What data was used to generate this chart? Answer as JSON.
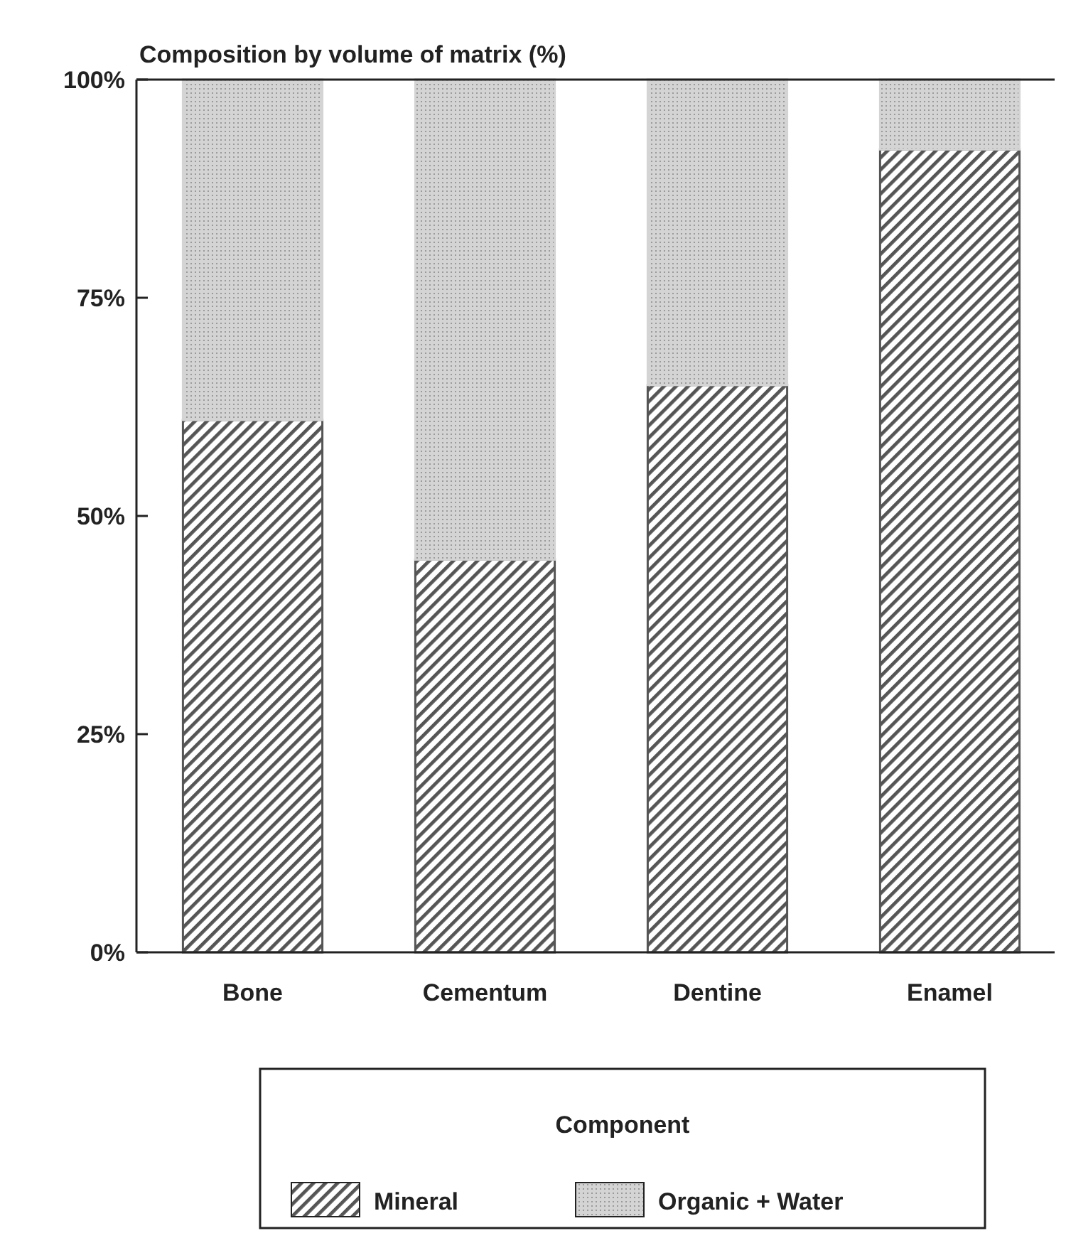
{
  "chart_data": {
    "type": "bar",
    "stacked": true,
    "title": "Composition by volume of matrix (%)",
    "categories": [
      "Bone",
      "Cementum",
      "Dentine",
      "Enamel"
    ],
    "series": [
      {
        "name": "Mineral",
        "color": "#555555",
        "values": [
          61,
          45,
          65,
          92
        ]
      },
      {
        "name": "Organic + Water",
        "color": "#d4d4d4",
        "values": [
          39,
          55,
          35,
          8
        ]
      }
    ],
    "ylim": [
      0,
      100
    ],
    "yticks": [
      {
        "value": 0,
        "label": "0%"
      },
      {
        "value": 25,
        "label": "25%"
      },
      {
        "value": 50,
        "label": "50%"
      },
      {
        "value": 75,
        "label": "75%"
      },
      {
        "value": 100,
        "label": "100%"
      }
    ],
    "legend": "bottom",
    "legend_title": "Component",
    "grid": false
  }
}
